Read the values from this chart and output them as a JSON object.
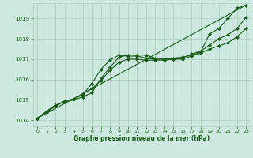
{
  "background_color": "#cce8df",
  "grid_color": "#aaccbb",
  "text_color": "#1a5c1a",
  "line_color": "#1a5c1a",
  "xlabel": "Graphe pression niveau de la mer (hPa)",
  "ylim": [
    1013.7,
    1019.75
  ],
  "xlim": [
    -0.5,
    23.5
  ],
  "yticks": [
    1014,
    1015,
    1016,
    1017,
    1018,
    1019
  ],
  "xticks": [
    0,
    1,
    2,
    3,
    4,
    5,
    6,
    7,
    8,
    9,
    10,
    11,
    12,
    13,
    14,
    15,
    16,
    17,
    18,
    19,
    20,
    21,
    22,
    23
  ],
  "series": [
    {
      "name": "line1_top",
      "x": [
        0,
        1,
        2,
        3,
        4,
        5,
        6,
        7,
        8,
        9,
        10,
        11,
        12,
        13,
        14,
        15,
        16,
        17,
        18,
        19,
        20,
        21,
        22,
        23
      ],
      "y": [
        1014.1,
        1014.45,
        1014.75,
        1014.9,
        1015.0,
        1015.15,
        1015.35,
        1016.05,
        1016.6,
        1017.1,
        1017.2,
        1017.2,
        1017.2,
        1017.05,
        1017.0,
        1017.05,
        1017.1,
        1017.2,
        1017.35,
        1018.25,
        1018.5,
        1019.0,
        1019.5,
        1019.65
      ],
      "marker": "D",
      "markersize": 2.0,
      "linewidth": 0.8,
      "linestyle": "-"
    },
    {
      "name": "line2_mid",
      "x": [
        0,
        1,
        2,
        3,
        4,
        5,
        6,
        7,
        8,
        9,
        10,
        11,
        12,
        13,
        14,
        15,
        16,
        17,
        18,
        19,
        20,
        21,
        22,
        23
      ],
      "y": [
        1014.1,
        1014.4,
        1014.7,
        1014.95,
        1015.05,
        1015.25,
        1015.8,
        1016.5,
        1016.95,
        1017.2,
        1017.15,
        1017.15,
        1017.05,
        1017.0,
        1017.0,
        1017.0,
        1017.05,
        1017.25,
        1017.4,
        1017.7,
        1018.0,
        1018.2,
        1018.5,
        1019.05
      ],
      "marker": "D",
      "markersize": 2.0,
      "linewidth": 0.8,
      "linestyle": "-"
    },
    {
      "name": "line3_low",
      "x": [
        0,
        1,
        2,
        3,
        4,
        5,
        6,
        7,
        8,
        9,
        10,
        11,
        12,
        13,
        14,
        15,
        16,
        17,
        18,
        19,
        20,
        21,
        22,
        23
      ],
      "y": [
        1014.1,
        1014.4,
        1014.7,
        1014.95,
        1015.05,
        1015.3,
        1015.55,
        1015.95,
        1016.45,
        1016.85,
        1017.0,
        1017.0,
        1016.95,
        1016.95,
        1016.95,
        1017.0,
        1017.0,
        1017.15,
        1017.3,
        1017.5,
        1017.65,
        1017.8,
        1018.1,
        1018.5
      ],
      "marker": "D",
      "markersize": 2.0,
      "linewidth": 0.8,
      "linestyle": "-"
    },
    {
      "name": "straight_line",
      "x": [
        0,
        23
      ],
      "y": [
        1014.1,
        1019.65
      ],
      "marker": null,
      "markersize": 0,
      "linewidth": 0.8,
      "linestyle": "-"
    }
  ]
}
